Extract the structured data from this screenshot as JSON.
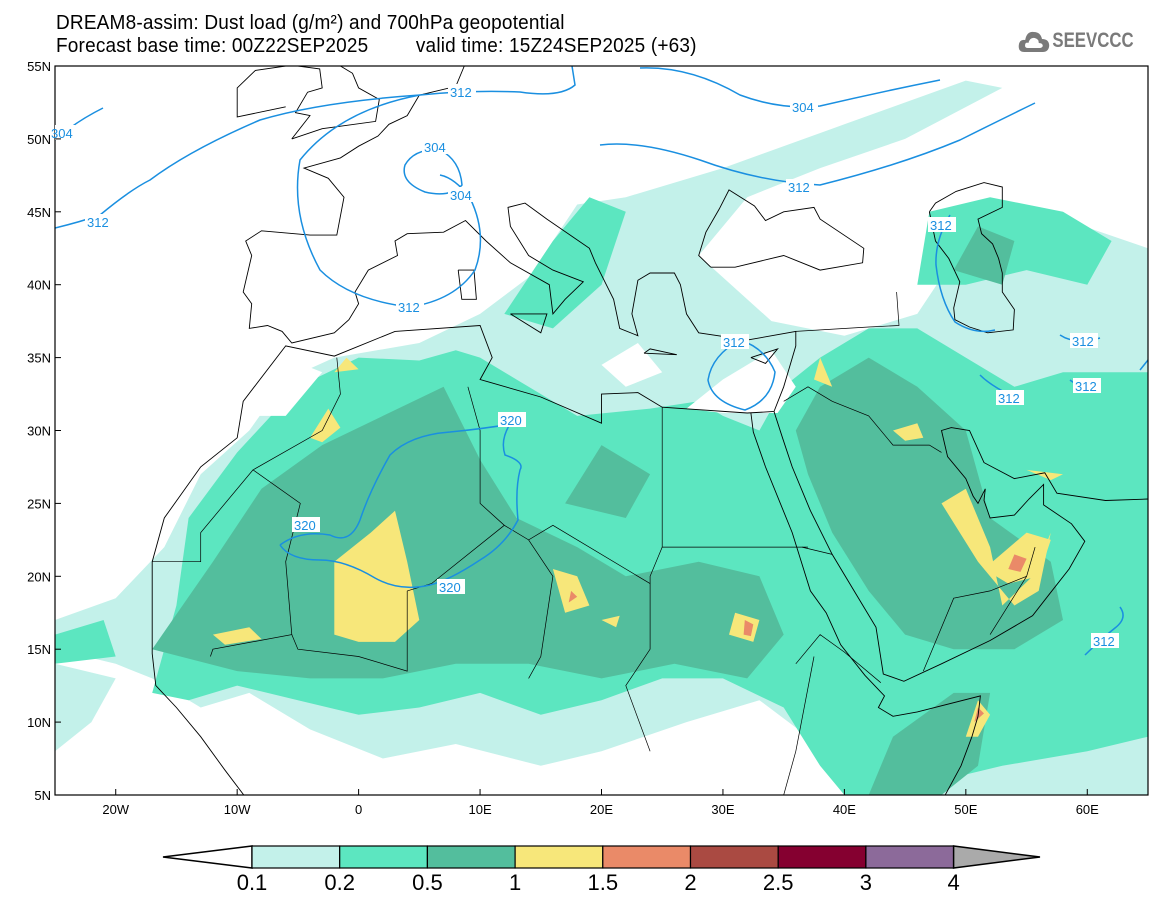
{
  "header": {
    "title": "DREAM8-assim: Dust load (g/m²) and 700hPa geopotential",
    "base_time": "Forecast base time: 00Z22SEP2025",
    "valid_time": "valid time: 15Z24SEP2025 (+63)",
    "logo_text": "SEEVCCC"
  },
  "axes": {
    "lat_labels": [
      "55N",
      "50N",
      "45N",
      "40N",
      "35N",
      "30N",
      "25N",
      "20N",
      "15N",
      "10N",
      "5N"
    ],
    "lon_labels": [
      "20W",
      "10W",
      "0",
      "10E",
      "20E",
      "30E",
      "40E",
      "50E",
      "60E"
    ],
    "lon_range": [
      -25,
      65
    ],
    "lat_range": [
      5,
      55
    ]
  },
  "contour_labels": [
    "312",
    "312",
    "304",
    "304",
    "304",
    "312",
    "304",
    "312",
    "312",
    "312",
    "312",
    "312",
    "312",
    "320",
    "320",
    "320",
    "312"
  ],
  "colorbar": {
    "ticks": [
      "0.1",
      "0.2",
      "0.5",
      "1",
      "1.5",
      "2",
      "2.5",
      "3",
      "4"
    ],
    "colors": [
      "#c3f1ea",
      "#5ce6c0",
      "#53be9d",
      "#f7e77a",
      "#ea8a68",
      "#aa4a42",
      "#850030",
      "#8c6a9a",
      "#aaaaaa"
    ]
  },
  "colors": {
    "contour": "#1a8fe0",
    "coast": "#000000"
  }
}
